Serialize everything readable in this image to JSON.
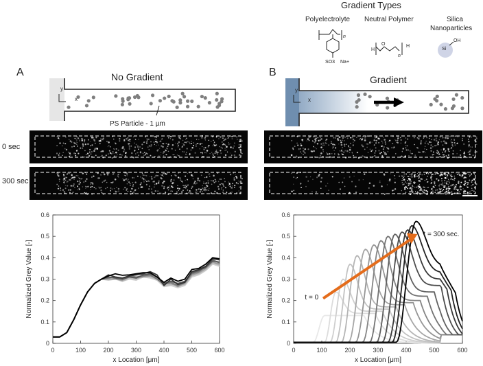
{
  "gradient_types": {
    "title": "Gradient Types",
    "polyelectrolyte": "Polyelectrolyte",
    "neutral_polymer": "Neutral Polymer",
    "silica": "Silica\nNanoparticles",
    "silica_line1": "Silica",
    "silica_line2": "Nanoparticles",
    "chem": {
      "so3": "SO3",
      "na": "Na+",
      "n": "n",
      "h": "H",
      "o": "O",
      "si": "Si",
      "oh": "OH"
    }
  },
  "panel_a": {
    "letter": "A",
    "title": "No Gradient",
    "particle_label": "PS Particle - 1 µm",
    "axis_y": "y",
    "axis_x": "x"
  },
  "panel_b": {
    "letter": "B",
    "title": "Gradient",
    "axis_y": "y",
    "axis_x": "x"
  },
  "time_labels": [
    "0 sec",
    "300 sec"
  ],
  "colors": {
    "reservoir_a": "#e6e6e6",
    "reservoir_b": "#6f8eaf",
    "particle": "#7f7f7f",
    "arrow": "#e46c1b"
  },
  "chart_data": [
    {
      "type": "line",
      "panel": "A",
      "xlabel": "x Location [μm]",
      "ylabel": "Normalized Grey Value [-]",
      "xlim": [
        0,
        600
      ],
      "ylim": [
        0,
        0.6
      ],
      "xticks": [
        "0",
        "100",
        "200",
        "300",
        "400",
        "500",
        "600"
      ],
      "yticks": [
        "0",
        "0.1",
        "0.2",
        "0.3",
        "0.4",
        "0.5",
        "0.6"
      ],
      "x": [
        0,
        25,
        50,
        75,
        100,
        125,
        150,
        175,
        200,
        225,
        250,
        275,
        300,
        325,
        350,
        375,
        400,
        425,
        450,
        475,
        500,
        525,
        550,
        575,
        600
      ],
      "series": [
        {
          "color": "#000000",
          "values": [
            0.03,
            0.03,
            0.05,
            0.11,
            0.18,
            0.24,
            0.28,
            0.3,
            0.315,
            0.325,
            0.318,
            0.32,
            0.325,
            0.33,
            0.33,
            0.31,
            0.285,
            0.305,
            0.29,
            0.3,
            0.345,
            0.35,
            0.37,
            0.4,
            0.395
          ]
        },
        {
          "color": "#333333",
          "values": [
            0.03,
            0.03,
            0.05,
            0.11,
            0.18,
            0.24,
            0.28,
            0.3,
            0.32,
            0.31,
            0.305,
            0.315,
            0.32,
            0.325,
            0.335,
            0.32,
            0.27,
            0.3,
            0.275,
            0.285,
            0.335,
            0.345,
            0.36,
            0.395,
            0.39
          ]
        },
        {
          "color": "#555555",
          "values": [
            0.03,
            0.03,
            0.05,
            0.11,
            0.18,
            0.24,
            0.28,
            0.3,
            0.31,
            0.305,
            0.3,
            0.31,
            0.305,
            0.32,
            0.325,
            0.31,
            0.28,
            0.29,
            0.28,
            0.29,
            0.33,
            0.34,
            0.355,
            0.385,
            0.38
          ]
        },
        {
          "color": "#777777",
          "values": [
            0.03,
            0.03,
            0.05,
            0.11,
            0.18,
            0.24,
            0.28,
            0.3,
            0.305,
            0.31,
            0.3,
            0.315,
            0.31,
            0.315,
            0.32,
            0.3,
            0.275,
            0.285,
            0.27,
            0.285,
            0.325,
            0.335,
            0.36,
            0.39,
            0.375
          ]
        },
        {
          "color": "#999999",
          "values": [
            0.03,
            0.03,
            0.05,
            0.11,
            0.18,
            0.24,
            0.28,
            0.3,
            0.3,
            0.3,
            0.295,
            0.31,
            0.305,
            0.31,
            0.315,
            0.305,
            0.28,
            0.28,
            0.265,
            0.28,
            0.32,
            0.33,
            0.35,
            0.38,
            0.37
          ]
        },
        {
          "color": "#bbbbbb",
          "values": [
            0.03,
            0.03,
            0.05,
            0.11,
            0.18,
            0.24,
            0.28,
            0.3,
            0.3,
            0.305,
            0.29,
            0.305,
            0.3,
            0.315,
            0.31,
            0.3,
            0.27,
            0.275,
            0.27,
            0.275,
            0.315,
            0.325,
            0.345,
            0.375,
            0.365
          ]
        },
        {
          "color": "#d0d0d0",
          "values": [
            0.03,
            0.03,
            0.05,
            0.11,
            0.18,
            0.24,
            0.28,
            0.3,
            0.295,
            0.3,
            0.29,
            0.3,
            0.295,
            0.31,
            0.305,
            0.295,
            0.265,
            0.27,
            0.26,
            0.27,
            0.31,
            0.32,
            0.34,
            0.37,
            0.36
          ]
        }
      ]
    },
    {
      "type": "line",
      "panel": "B",
      "xlabel": "x Location [μm]",
      "ylabel": "Normalized Grey Value [-]",
      "xlim": [
        0,
        600
      ],
      "ylim": [
        0,
        0.6
      ],
      "xticks": [
        "0",
        "100",
        "200",
        "300",
        "400",
        "500",
        "600"
      ],
      "yticks": [
        "0",
        "0.1",
        "0.2",
        "0.3",
        "0.4",
        "0.5",
        "0.6"
      ],
      "annotations": [
        "t = 0",
        "t = 300 sec."
      ],
      "peaks": [
        {
          "x0": 70,
          "peak_x": 110,
          "peak_y": 0.13,
          "sigma": 22,
          "tail": 0.13,
          "color": "#e8e8e8"
        },
        {
          "x0": 110,
          "peak_x": 150,
          "peak_y": 0.24,
          "sigma": 24,
          "tail": 0.14,
          "color": "#dcdcdc"
        },
        {
          "x0": 130,
          "peak_x": 175,
          "peak_y": 0.3,
          "sigma": 25,
          "tail": 0.15,
          "color": "#cfcfcf"
        },
        {
          "x0": 150,
          "peak_x": 200,
          "peak_y": 0.37,
          "sigma": 27,
          "tail": 0.16,
          "color": "#c2c2c2"
        },
        {
          "x0": 170,
          "peak_x": 225,
          "peak_y": 0.41,
          "sigma": 28,
          "tail": 0.17,
          "color": "#b5b5b5"
        },
        {
          "x0": 195,
          "peak_x": 255,
          "peak_y": 0.44,
          "sigma": 30,
          "tail": 0.18,
          "color": "#a5a5a5"
        },
        {
          "x0": 220,
          "peak_x": 285,
          "peak_y": 0.46,
          "sigma": 31,
          "tail": 0.19,
          "color": "#959595"
        },
        {
          "x0": 245,
          "peak_x": 310,
          "peak_y": 0.48,
          "sigma": 32,
          "tail": 0.2,
          "color": "#858585"
        },
        {
          "x0": 270,
          "peak_x": 335,
          "peak_y": 0.5,
          "sigma": 33,
          "tail": 0.22,
          "color": "#737373"
        },
        {
          "x0": 295,
          "peak_x": 360,
          "peak_y": 0.51,
          "sigma": 33,
          "tail": 0.24,
          "color": "#616161"
        },
        {
          "x0": 315,
          "peak_x": 385,
          "peak_y": 0.52,
          "sigma": 34,
          "tail": 0.27,
          "color": "#4d4d4d"
        },
        {
          "x0": 335,
          "peak_x": 405,
          "peak_y": 0.53,
          "sigma": 34,
          "tail": 0.3,
          "color": "#383838"
        },
        {
          "x0": 350,
          "peak_x": 420,
          "peak_y": 0.55,
          "sigma": 35,
          "tail": 0.33,
          "color": "#222222"
        },
        {
          "x0": 365,
          "peak_x": 435,
          "peak_y": 0.57,
          "sigma": 35,
          "tail": 0.36,
          "color": "#000000"
        }
      ]
    }
  ]
}
